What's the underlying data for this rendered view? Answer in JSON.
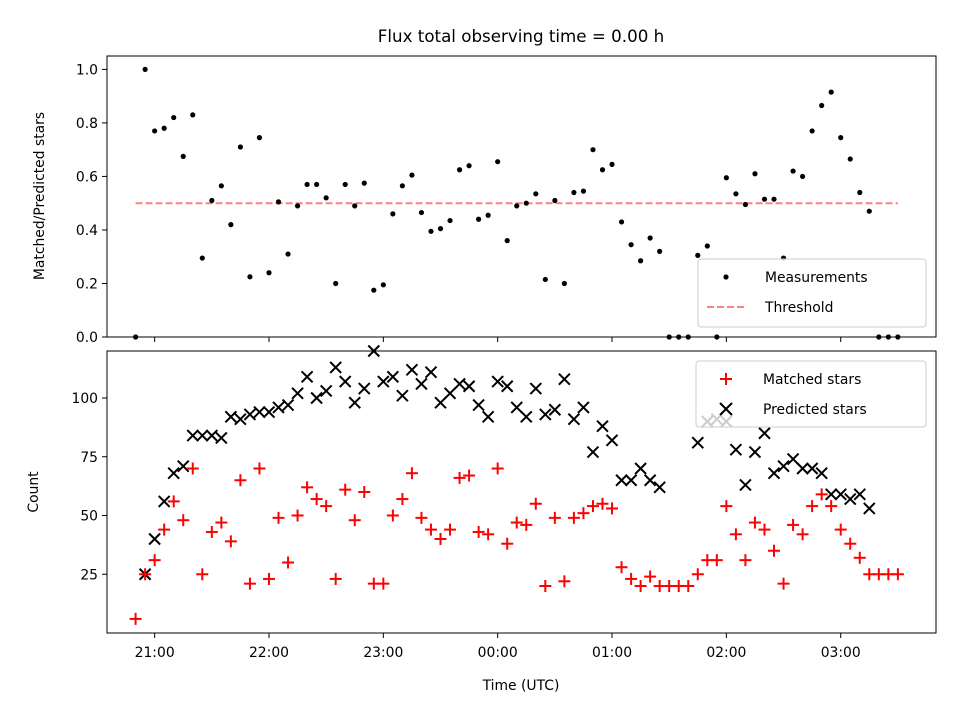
{
  "chart_data": [
    {
      "type": "scatter",
      "title": "Flux total observing time = 0.00 h",
      "xlabel": "",
      "ylabel": "Matched/Predicted stars",
      "xlim": [
        "20:35",
        "03:50"
      ],
      "ylim": [
        0,
        1.05
      ],
      "yticks": [
        "0.0",
        "0.2",
        "0.4",
        "0.6",
        "0.8",
        "1.0"
      ],
      "legend_position": "lower-right",
      "threshold": {
        "name": "Threshold",
        "value": 0.5,
        "x_range": [
          "20:50",
          "03:30"
        ],
        "color": "#ff8080",
        "style": "dashed"
      },
      "series": [
        {
          "name": "Measurements",
          "color": "#000000",
          "marker": "dot",
          "points": [
            [
              "20:50",
              0.0
            ],
            [
              "20:55",
              1.0
            ],
            [
              "21:00",
              0.77
            ],
            [
              "21:05",
              0.78
            ],
            [
              "21:10",
              0.82
            ],
            [
              "21:15",
              0.675
            ],
            [
              "21:20",
              0.83
            ],
            [
              "21:25",
              0.295
            ],
            [
              "21:30",
              0.51
            ],
            [
              "21:35",
              0.565
            ],
            [
              "21:40",
              0.42
            ],
            [
              "21:45",
              0.71
            ],
            [
              "21:50",
              0.225
            ],
            [
              "21:55",
              0.745
            ],
            [
              "22:00",
              0.24
            ],
            [
              "22:05",
              0.505
            ],
            [
              "22:10",
              0.31
            ],
            [
              "22:15",
              0.49
            ],
            [
              "22:20",
              0.57
            ],
            [
              "22:25",
              0.57
            ],
            [
              "22:30",
              0.52
            ],
            [
              "22:35",
              0.2
            ],
            [
              "22:40",
              0.57
            ],
            [
              "22:45",
              0.49
            ],
            [
              "22:50",
              0.575
            ],
            [
              "22:55",
              0.175
            ],
            [
              "23:00",
              0.195
            ],
            [
              "23:05",
              0.46
            ],
            [
              "23:10",
              0.565
            ],
            [
              "23:15",
              0.605
            ],
            [
              "23:20",
              0.465
            ],
            [
              "23:25",
              0.395
            ],
            [
              "23:30",
              0.405
            ],
            [
              "23:35",
              0.435
            ],
            [
              "23:40",
              0.625
            ],
            [
              "23:45",
              0.64
            ],
            [
              "23:50",
              0.44
            ],
            [
              "23:55",
              0.455
            ],
            [
              "00:00",
              0.655
            ],
            [
              "00:05",
              0.36
            ],
            [
              "00:10",
              0.49
            ],
            [
              "00:15",
              0.5
            ],
            [
              "00:20",
              0.535
            ],
            [
              "00:25",
              0.215
            ],
            [
              "00:30",
              0.51
            ],
            [
              "00:35",
              0.2
            ],
            [
              "00:40",
              0.54
            ],
            [
              "00:45",
              0.545
            ],
            [
              "00:50",
              0.7
            ],
            [
              "00:55",
              0.625
            ],
            [
              "01:00",
              0.645
            ],
            [
              "01:05",
              0.43
            ],
            [
              "01:10",
              0.345
            ],
            [
              "01:15",
              0.285
            ],
            [
              "01:20",
              0.37
            ],
            [
              "01:25",
              0.32
            ],
            [
              "01:30",
              0.0
            ],
            [
              "01:35",
              0.0
            ],
            [
              "01:40",
              0.0
            ],
            [
              "01:45",
              0.305
            ],
            [
              "01:50",
              0.34
            ],
            [
              "01:55",
              0.0
            ],
            [
              "02:00",
              0.595
            ],
            [
              "02:05",
              0.535
            ],
            [
              "02:10",
              0.495
            ],
            [
              "02:15",
              0.61
            ],
            [
              "02:20",
              0.515
            ],
            [
              "02:25",
              0.515
            ],
            [
              "02:30",
              0.295
            ],
            [
              "02:35",
              0.62
            ],
            [
              "02:40",
              0.6
            ],
            [
              "02:45",
              0.77
            ],
            [
              "02:50",
              0.865
            ],
            [
              "02:55",
              0.915
            ],
            [
              "03:00",
              0.745
            ],
            [
              "03:05",
              0.665
            ],
            [
              "03:10",
              0.54
            ],
            [
              "03:15",
              0.47
            ],
            [
              "03:20",
              0.0
            ],
            [
              "03:25",
              0.0
            ],
            [
              "03:30",
              0.0
            ]
          ]
        }
      ]
    },
    {
      "type": "scatter",
      "title": "",
      "xlabel": "Time (UTC)",
      "ylabel": "Count",
      "xlim": [
        "20:35",
        "03:50"
      ],
      "ylim": [
        0,
        120
      ],
      "yticks": [
        "25",
        "50",
        "75",
        "100"
      ],
      "xticks": [
        "21:00",
        "22:00",
        "23:00",
        "00:00",
        "01:00",
        "02:00",
        "03:00"
      ],
      "legend_position": "upper-right",
      "series": [
        {
          "name": "Matched stars",
          "color": "#ff0000",
          "marker": "plus",
          "points": [
            [
              "20:50",
              6
            ],
            [
              "20:55",
              25
            ],
            [
              "21:00",
              31
            ],
            [
              "21:05",
              44
            ],
            [
              "21:10",
              56
            ],
            [
              "21:15",
              48
            ],
            [
              "21:20",
              70
            ],
            [
              "21:25",
              25
            ],
            [
              "21:30",
              43
            ],
            [
              "21:35",
              47
            ],
            [
              "21:40",
              39
            ],
            [
              "21:45",
              65
            ],
            [
              "21:50",
              21
            ],
            [
              "21:55",
              70
            ],
            [
              "22:00",
              23
            ],
            [
              "22:05",
              49
            ],
            [
              "22:10",
              30
            ],
            [
              "22:15",
              50
            ],
            [
              "22:20",
              62
            ],
            [
              "22:25",
              57
            ],
            [
              "22:30",
              54
            ],
            [
              "22:35",
              23
            ],
            [
              "22:40",
              61
            ],
            [
              "22:45",
              48
            ],
            [
              "22:50",
              60
            ],
            [
              "22:55",
              21
            ],
            [
              "23:00",
              21
            ],
            [
              "23:05",
              50
            ],
            [
              "23:10",
              57
            ],
            [
              "23:15",
              68
            ],
            [
              "23:20",
              49
            ],
            [
              "23:25",
              44
            ],
            [
              "23:30",
              40
            ],
            [
              "23:35",
              44
            ],
            [
              "23:40",
              66
            ],
            [
              "23:45",
              67
            ],
            [
              "23:50",
              43
            ],
            [
              "23:55",
              42
            ],
            [
              "00:00",
              70
            ],
            [
              "00:05",
              38
            ],
            [
              "00:10",
              47
            ],
            [
              "00:15",
              46
            ],
            [
              "00:20",
              55
            ],
            [
              "00:25",
              20
            ],
            [
              "00:30",
              49
            ],
            [
              "00:35",
              22
            ],
            [
              "00:40",
              49
            ],
            [
              "00:45",
              51
            ],
            [
              "00:50",
              54
            ],
            [
              "00:55",
              55
            ],
            [
              "01:00",
              53
            ],
            [
              "01:05",
              28
            ],
            [
              "01:10",
              23
            ],
            [
              "01:15",
              20
            ],
            [
              "01:20",
              24
            ],
            [
              "01:25",
              20
            ],
            [
              "01:30",
              20
            ],
            [
              "01:35",
              20
            ],
            [
              "01:40",
              20
            ],
            [
              "01:45",
              25
            ],
            [
              "01:50",
              31
            ],
            [
              "01:55",
              31
            ],
            [
              "02:00",
              54
            ],
            [
              "02:05",
              42
            ],
            [
              "02:10",
              31
            ],
            [
              "02:15",
              47
            ],
            [
              "02:20",
              44
            ],
            [
              "02:25",
              35
            ],
            [
              "02:30",
              21
            ],
            [
              "02:35",
              46
            ],
            [
              "02:40",
              42
            ],
            [
              "02:45",
              54
            ],
            [
              "02:50",
              59
            ],
            [
              "02:55",
              54
            ],
            [
              "03:00",
              44
            ],
            [
              "03:05",
              38
            ],
            [
              "03:10",
              32
            ],
            [
              "03:15",
              25
            ],
            [
              "03:20",
              25
            ],
            [
              "03:25",
              25
            ],
            [
              "03:30",
              25
            ]
          ]
        },
        {
          "name": "Predicted stars",
          "color": "#000000",
          "marker": "x",
          "points": [
            [
              "20:55",
              25
            ],
            [
              "21:00",
              40
            ],
            [
              "21:05",
              56
            ],
            [
              "21:10",
              68
            ],
            [
              "21:15",
              71
            ],
            [
              "21:20",
              84
            ],
            [
              "21:25",
              84
            ],
            [
              "21:30",
              84
            ],
            [
              "21:35",
              83
            ],
            [
              "21:40",
              92
            ],
            [
              "21:45",
              91
            ],
            [
              "21:50",
              93
            ],
            [
              "21:55",
              94
            ],
            [
              "22:00",
              94
            ],
            [
              "22:05",
              96
            ],
            [
              "22:10",
              97
            ],
            [
              "22:15",
              102
            ],
            [
              "22:20",
              109
            ],
            [
              "22:25",
              100
            ],
            [
              "22:30",
              103
            ],
            [
              "22:35",
              113
            ],
            [
              "22:40",
              107
            ],
            [
              "22:45",
              98
            ],
            [
              "22:50",
              104
            ],
            [
              "22:55",
              120
            ],
            [
              "23:00",
              107
            ],
            [
              "23:05",
              109
            ],
            [
              "23:10",
              101
            ],
            [
              "23:15",
              112
            ],
            [
              "23:20",
              106
            ],
            [
              "23:25",
              111
            ],
            [
              "23:30",
              98
            ],
            [
              "23:35",
              102
            ],
            [
              "23:40",
              106
            ],
            [
              "23:45",
              105
            ],
            [
              "23:50",
              97
            ],
            [
              "23:55",
              92
            ],
            [
              "00:00",
              107
            ],
            [
              "00:05",
              105
            ],
            [
              "00:10",
              96
            ],
            [
              "00:15",
              92
            ],
            [
              "00:20",
              104
            ],
            [
              "00:25",
              93
            ],
            [
              "00:30",
              95
            ],
            [
              "00:35",
              108
            ],
            [
              "00:40",
              91
            ],
            [
              "00:45",
              96
            ],
            [
              "00:50",
              77
            ],
            [
              "00:55",
              88
            ],
            [
              "01:00",
              82
            ],
            [
              "01:05",
              65
            ],
            [
              "01:10",
              65
            ],
            [
              "01:15",
              70
            ],
            [
              "01:20",
              65
            ],
            [
              "01:25",
              62
            ],
            [
              "01:45",
              81
            ],
            [
              "01:50",
              90
            ],
            [
              "01:55",
              91
            ],
            [
              "02:00",
              90
            ],
            [
              "02:05",
              78
            ],
            [
              "02:10",
              63
            ],
            [
              "02:15",
              77
            ],
            [
              "02:20",
              85
            ],
            [
              "02:25",
              68
            ],
            [
              "02:30",
              71
            ],
            [
              "02:35",
              74
            ],
            [
              "02:40",
              70
            ],
            [
              "02:45",
              70
            ],
            [
              "02:50",
              68
            ],
            [
              "02:55",
              59
            ],
            [
              "03:00",
              59
            ],
            [
              "03:05",
              57
            ],
            [
              "03:10",
              59
            ],
            [
              "03:15",
              53
            ]
          ]
        }
      ]
    }
  ]
}
